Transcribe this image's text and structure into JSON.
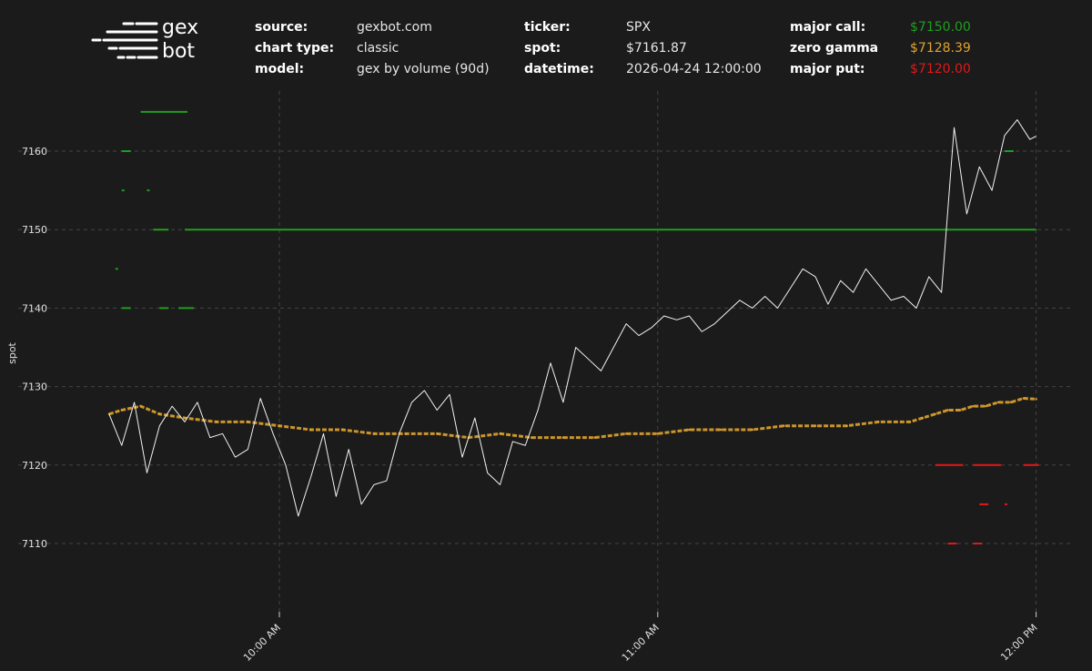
{
  "logo": {
    "line1": "gex",
    "line2": "bot"
  },
  "info": {
    "col1": [
      {
        "label": "source:",
        "value": "gexbot.com"
      },
      {
        "label": "chart type:",
        "value": "classic"
      },
      {
        "label": "model:",
        "value": "gex by volume (90d)"
      }
    ],
    "col2": [
      {
        "label": "ticker:",
        "value": "SPX"
      },
      {
        "label": "spot:",
        "value": "$7161.87"
      },
      {
        "label": "datetime:",
        "value": "2026-04-24 12:00:00"
      }
    ],
    "col3": [
      {
        "label": "major call:",
        "value": "$7150.00"
      },
      {
        "label": "zero gamma",
        "value": "$7128.39"
      },
      {
        "label": "major put:",
        "value": "$7120.00"
      }
    ]
  },
  "colors": {
    "background": "#1b1b1b",
    "spot": "#f2f2f2",
    "major_call": "#1e9e1e",
    "zero_gamma": "#e0a32e",
    "major_put": "#e01919",
    "grid": "#444444"
  },
  "chart_data": {
    "type": "line",
    "title": "",
    "xlabel": "",
    "ylabel": "spot",
    "x_ticks": [
      "10:00 AM",
      "11:00 AM",
      "12:00 PM"
    ],
    "y_ticks": [
      7110,
      7120,
      7130,
      7140,
      7150,
      7160
    ],
    "ylim": [
      7101,
      7176
    ],
    "x_range_minutes": [
      -27,
      120
    ],
    "grid": true,
    "legend": "none",
    "series": [
      {
        "key": "spot",
        "x": [
          -27,
          -25,
          -23,
          -21,
          -19,
          -17,
          -15,
          -13,
          -11,
          -9,
          -7,
          -5,
          -3,
          -1,
          1,
          3,
          5,
          7,
          9,
          11,
          13,
          15,
          17,
          19,
          21,
          23,
          25,
          27,
          29,
          31,
          33,
          35,
          37,
          39,
          41,
          43,
          45,
          47,
          49,
          51,
          53,
          55,
          57,
          59,
          61,
          63,
          65,
          67,
          69,
          71,
          73,
          75,
          77,
          79,
          81,
          83,
          85,
          87,
          89,
          91,
          93,
          95,
          97,
          99,
          101,
          103,
          105,
          107,
          109,
          111,
          113,
          115,
          117,
          119,
          120
        ],
        "y": [
          7126.5,
          7122.5,
          7128.0,
          7119.0,
          7125.0,
          7127.5,
          7125.5,
          7128.0,
          7123.5,
          7124.0,
          7121.0,
          7122.0,
          7128.5,
          7124.0,
          7120.0,
          7113.5,
          7118.5,
          7124.0,
          7116.0,
          7122.0,
          7115.0,
          7117.5,
          7118.0,
          7124.0,
          7128.0,
          7129.5,
          7127.0,
          7129.0,
          7121.0,
          7126.0,
          7119.0,
          7117.5,
          7123.0,
          7122.5,
          7127.0,
          7133.0,
          7128.0,
          7135.0,
          7133.5,
          7132.0,
          7135.0,
          7138.0,
          7136.5,
          7137.5,
          7139.0,
          7138.5,
          7139.0,
          7137.0,
          7138.0,
          7139.5,
          7141.0,
          7140.0,
          7141.5,
          7140.0,
          7142.5,
          7145.0,
          7144.0,
          7140.5,
          7143.5,
          7142.0,
          7145.0,
          7143.0,
          7141.0,
          7141.5,
          7140.0,
          7144.0,
          7142.0,
          7163.0,
          7152.0,
          7158.0,
          7155.0,
          7162.0,
          7164.0,
          7161.5,
          7161.9
        ]
      },
      {
        "key": "zero_gamma",
        "x": [
          -27,
          -25,
          -22,
          -19,
          -15,
          -10,
          -5,
          0,
          5,
          10,
          15,
          20,
          25,
          30,
          35,
          40,
          45,
          50,
          55,
          60,
          65,
          70,
          75,
          80,
          85,
          90,
          95,
          100,
          102,
          104,
          106,
          108,
          110,
          112,
          114,
          116,
          118,
          120
        ],
        "y": [
          7126.5,
          7127.0,
          7127.5,
          7126.5,
          7126.0,
          7125.5,
          7125.5,
          7125.0,
          7124.5,
          7124.5,
          7124.0,
          7124.0,
          7124.0,
          7123.5,
          7124.0,
          7123.5,
          7123.5,
          7123.5,
          7124.0,
          7124.0,
          7124.5,
          7124.5,
          7124.5,
          7125.0,
          7125.0,
          7125.0,
          7125.5,
          7125.5,
          7126.0,
          7126.5,
          7127.0,
          7127.0,
          7127.5,
          7127.5,
          7128.0,
          7128.0,
          7128.5,
          7128.4
        ]
      }
    ],
    "major_call_line": {
      "value": 7150,
      "x_start": -15,
      "x_end": 120
    },
    "call_points": [
      {
        "x": -22,
        "y": 7165,
        "x_end": -15
      },
      {
        "x": -25,
        "y": 7160,
        "x_end": -24
      },
      {
        "x": -25,
        "y": 7155,
        "x_end": -25
      },
      {
        "x": -21,
        "y": 7155,
        "x_end": -21
      },
      {
        "x": -20,
        "y": 7150,
        "x_end": -18
      },
      {
        "x": -26,
        "y": 7145,
        "x_end": -26
      },
      {
        "x": -25,
        "y": 7140,
        "x_end": -24
      },
      {
        "x": -19,
        "y": 7140,
        "x_end": -18
      },
      {
        "x": -16,
        "y": 7140,
        "x_end": -14
      },
      {
        "x": 115,
        "y": 7160,
        "x_end": 116
      }
    ],
    "put_points": [
      {
        "x": 104,
        "y": 7120,
        "x_end": 108
      },
      {
        "x": 110,
        "y": 7120,
        "x_end": 114
      },
      {
        "x": 118,
        "y": 7120,
        "x_end": 120
      },
      {
        "x": 111,
        "y": 7115,
        "x_end": 112
      },
      {
        "x": 115,
        "y": 7115,
        "x_end": 115
      },
      {
        "x": 106,
        "y": 7110,
        "x_end": 107
      },
      {
        "x": 110,
        "y": 7110,
        "x_end": 111
      }
    ]
  }
}
